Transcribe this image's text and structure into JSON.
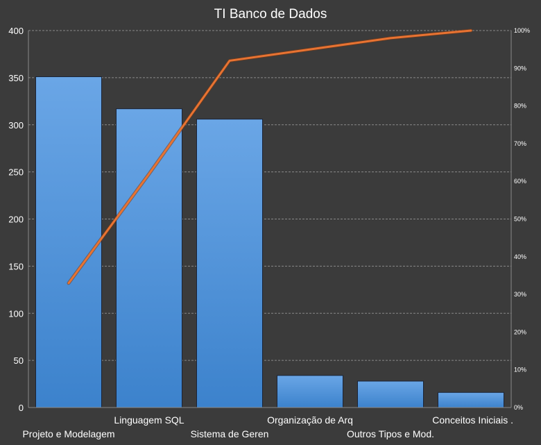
{
  "chart_data": {
    "type": "bar",
    "title": "TI Banco de Dados",
    "categories": [
      "Projeto e Modelagem",
      "Linguagem SQL",
      "Sistema de Geren",
      "Organização de Arq",
      "Outros Tipos e Mod.",
      "Conceitos Iniciais ."
    ],
    "series": [
      {
        "type": "bar",
        "values": [
          351,
          317,
          306,
          34,
          28,
          16
        ],
        "color": "#4a8fd6"
      },
      {
        "type": "line",
        "axis": "secondary",
        "values": [
          33,
          62,
          92,
          95,
          98,
          100
        ],
        "color": "#e87332"
      }
    ],
    "ylim": [
      0,
      400
    ],
    "yticks": [
      "0",
      "50",
      "100",
      "150",
      "200",
      "250",
      "300",
      "350",
      "400"
    ],
    "y2lim": [
      0,
      100
    ],
    "y2ticks": [
      "0%",
      "10%",
      "20%",
      "30%",
      "40%",
      "50%",
      "60%",
      "70%",
      "80%",
      "90%",
      "100%"
    ],
    "grid": true,
    "legend": "none",
    "colors": {
      "background": "#3b3b3b",
      "grid": "#8a8a8a",
      "text": "#ffffff",
      "bar_top": "#6aa6e6",
      "bar_bottom": "#3c82cc",
      "bar_border": "#1a2438",
      "line": "#e87332"
    }
  }
}
